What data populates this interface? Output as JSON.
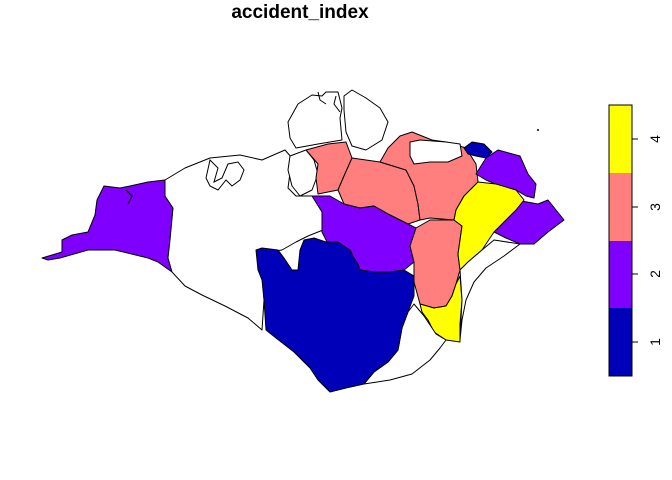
{
  "map": {
    "title": "accident_index",
    "regions": [
      {
        "name": "west-wight",
        "class": 2
      },
      {
        "name": "north-west",
        "class": 0
      },
      {
        "name": "cowes-north",
        "class": 0
      },
      {
        "name": "cowes-south",
        "class": 0
      },
      {
        "name": "north-central-pink-left",
        "class": 3
      },
      {
        "name": "central-pink",
        "class": 3
      },
      {
        "name": "north-east-pink",
        "class": 3
      },
      {
        "name": "north-east-white",
        "class": 0
      },
      {
        "name": "ryde-navy",
        "class": 1
      },
      {
        "name": "east-purple-top",
        "class": 2
      },
      {
        "name": "east-purple-bottom",
        "class": 2
      },
      {
        "name": "central-purple",
        "class": 2
      },
      {
        "name": "south-central-pink",
        "class": 3
      },
      {
        "name": "east-yellow",
        "class": 4
      },
      {
        "name": "south-yellow",
        "class": 4
      },
      {
        "name": "south-white-east",
        "class": 0
      },
      {
        "name": "south-navy",
        "class": 1
      }
    ]
  },
  "legend": {
    "colors": [
      "#0000B8",
      "#8000FF",
      "#FF7F7F",
      "#FFFF00"
    ],
    "ticks": [
      "1",
      "2",
      "3",
      "4"
    ]
  }
}
